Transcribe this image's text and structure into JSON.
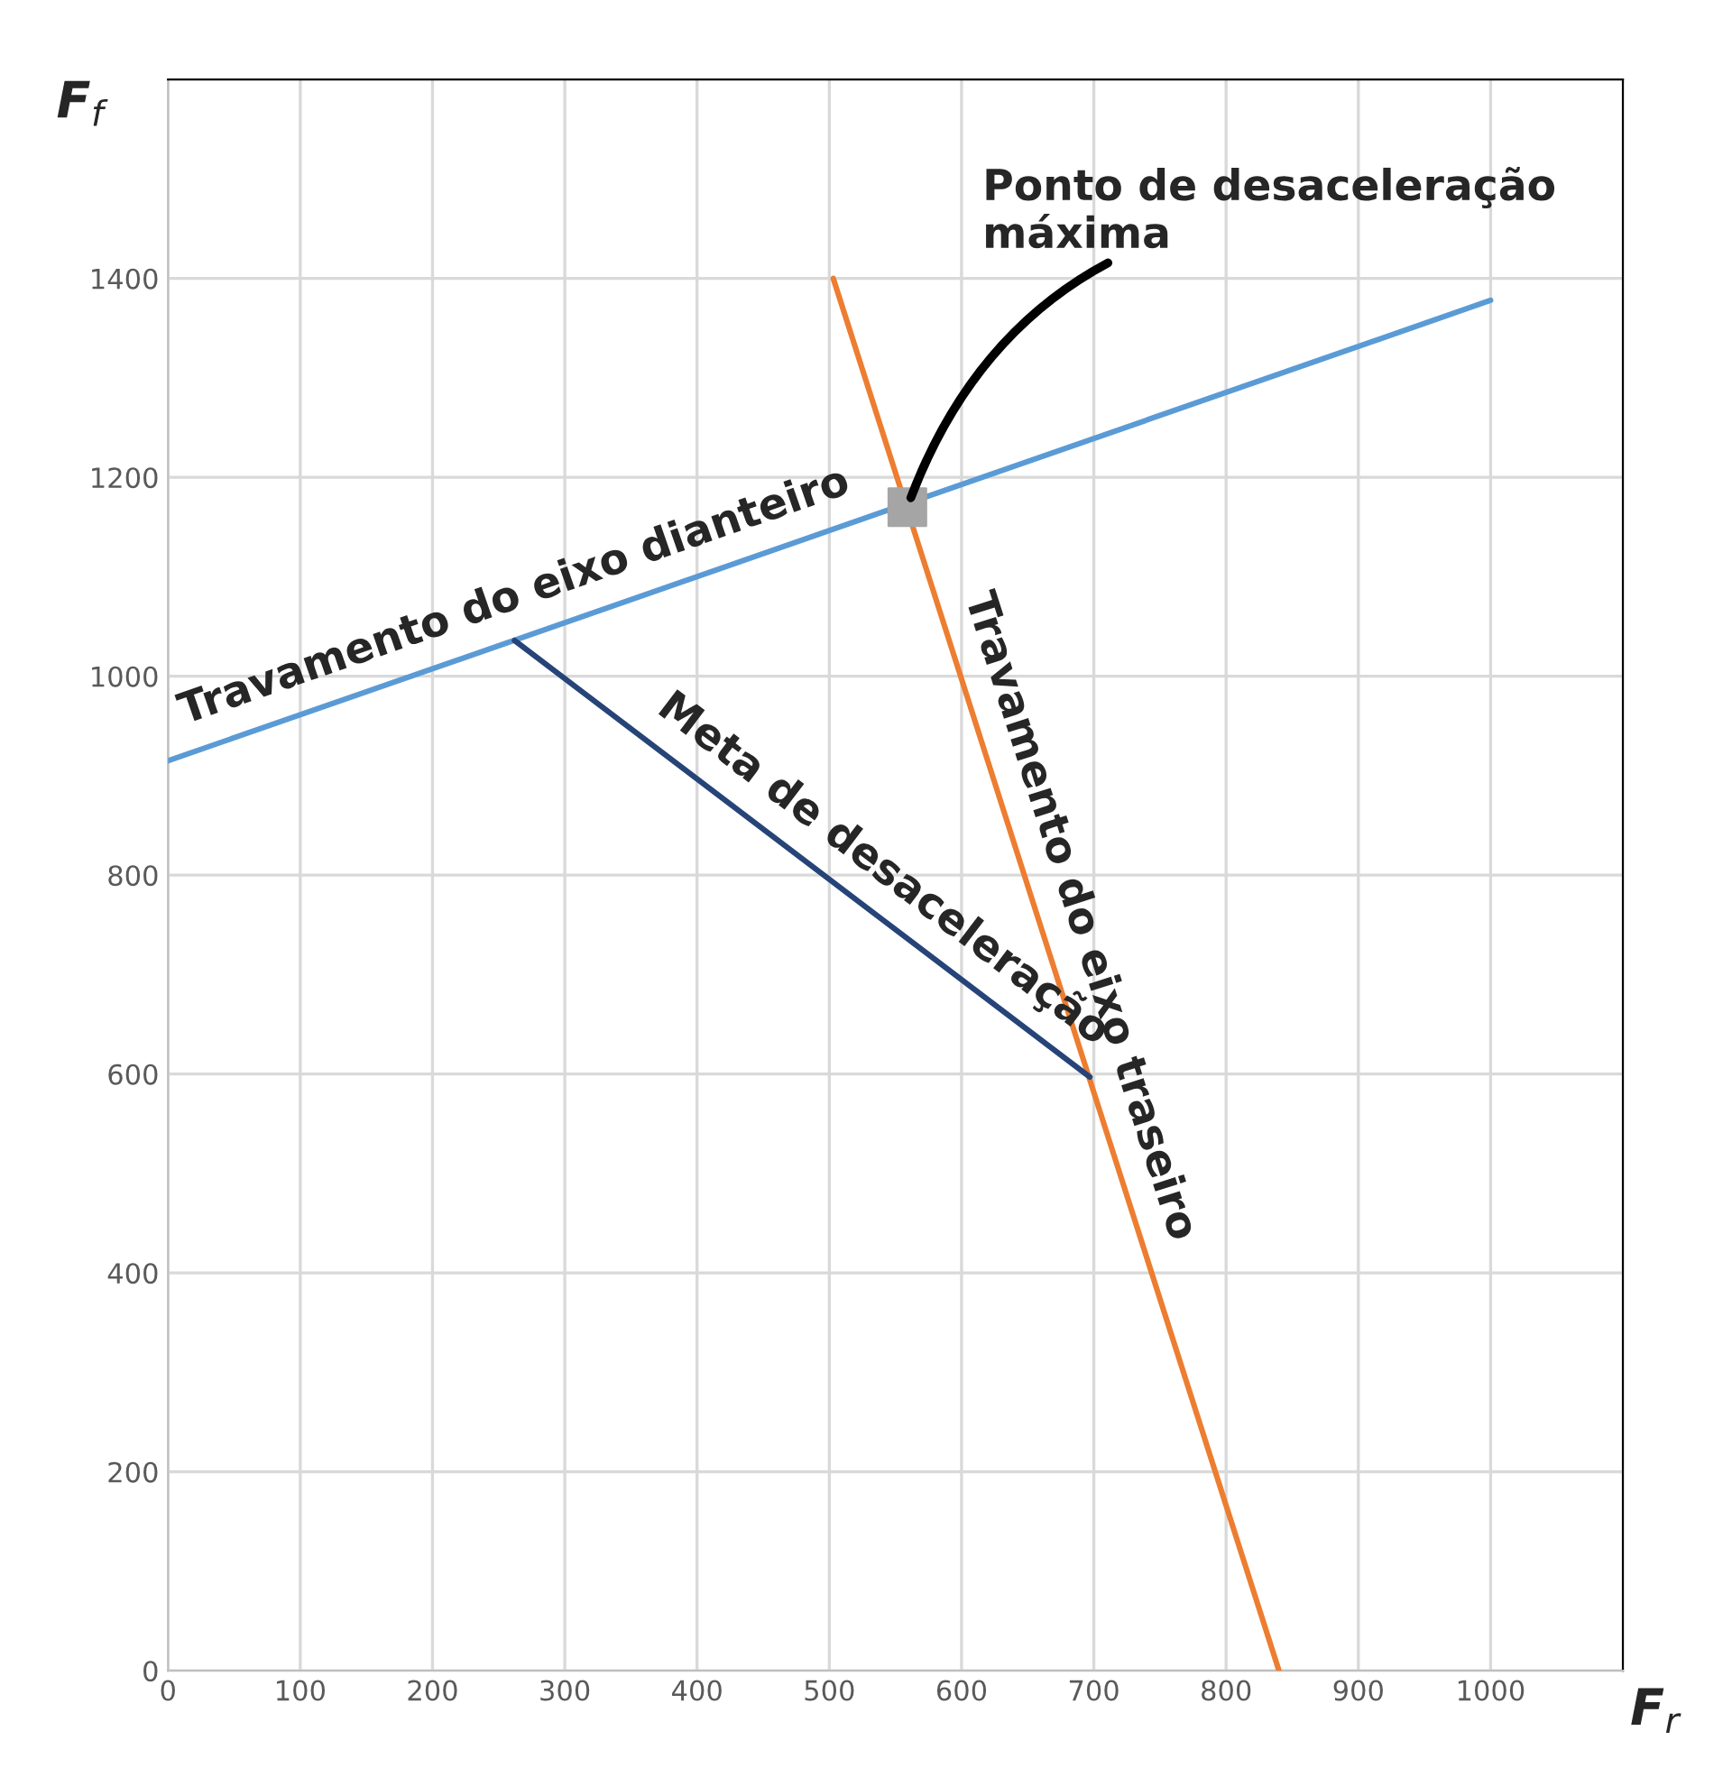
{
  "chart_data": {
    "type": "line",
    "xlabel": "F$_{r}$",
    "ylabel": "F$_{f}$",
    "xlim": [
      0,
      1100
    ],
    "ylim": [
      0,
      1600
    ],
    "xticks": [
      0,
      100,
      200,
      300,
      400,
      500,
      600,
      700,
      800,
      900,
      1000
    ],
    "yticks": [
      0,
      200,
      400,
      600,
      800,
      1000,
      1200,
      1400
    ],
    "grid": true,
    "marker": "none",
    "line_style": "solid",
    "series": [
      {
        "color": "#ed7d31",
        "x": [
          503,
          840
        ],
        "values": [
          1400,
          0
        ]
      },
      {
        "type": "scatter",
        "color": "#a5a5a5",
        "marker": "square",
        "x": [
          559
        ],
        "values": [
          1170
        ]
      },
      {
        "color": "#5b9bd5",
        "x": [
          0,
          1000
        ],
        "values": [
          915,
          1378
        ]
      },
      {
        "color": "#264478",
        "x": [
          262,
          697
        ],
        "values": [
          1036,
          597
        ]
      }
    ],
    "annotations": [
      {
        "text": "Ponto de desaceleração máxima",
        "x": 559,
        "y": 1170
      },
      {
        "text": "Travamento do eixo dianteiro",
        "x": 272,
        "y": 1041
      },
      {
        "text": "Meta de desaceleração",
        "x": 522,
        "y": 773
      },
      {
        "text": "Travamento do eixo traseiro",
        "x": 660,
        "y": 746
      }
    ]
  }
}
